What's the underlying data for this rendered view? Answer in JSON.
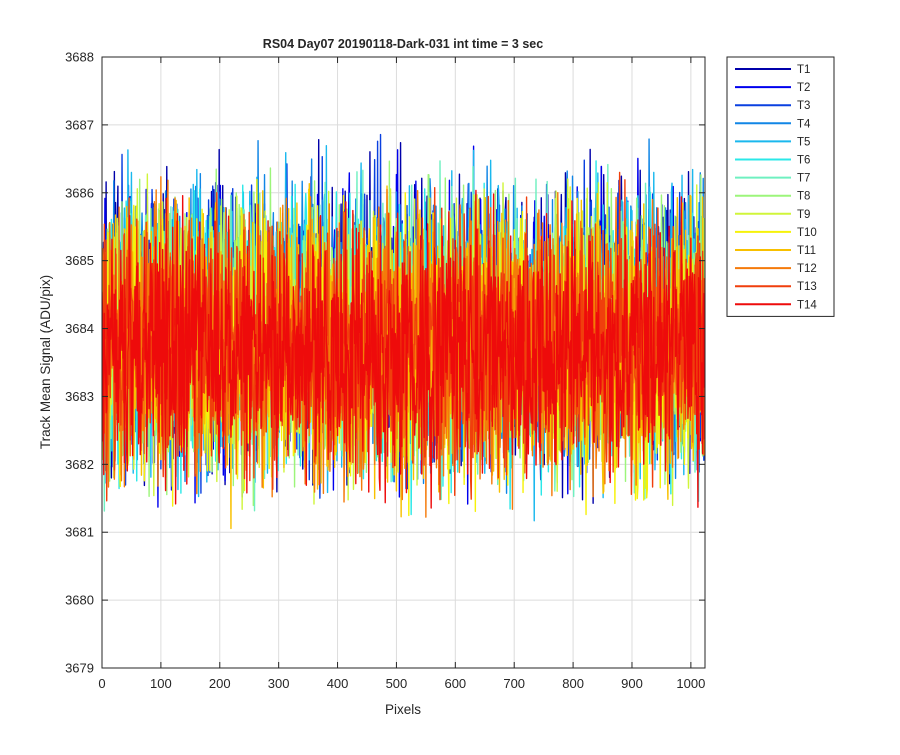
{
  "chart_data": {
    "type": "line",
    "title": "RS04 Day07 20190118-Dark-031 int time = 3 sec",
    "xlabel": "Pixels",
    "ylabel": "Track Mean Signal (ADU/pix)",
    "xlim": [
      0,
      1024
    ],
    "ylim": [
      3679,
      3688
    ],
    "xticks": [
      0,
      100,
      200,
      300,
      400,
      500,
      600,
      700,
      800,
      900,
      1000
    ],
    "yticks": [
      3679,
      3680,
      3681,
      3682,
      3683,
      3684,
      3685,
      3686,
      3687,
      3688
    ],
    "grid": true,
    "legend_position": "outside-top-right",
    "pixel_count": 1024,
    "series": [
      {
        "name": "T1",
        "color": "#0000aa",
        "center": 3684.0,
        "spread": 1.05
      },
      {
        "name": "T2",
        "color": "#0000ee",
        "center": 3684.0,
        "spread": 1.0
      },
      {
        "name": "T3",
        "color": "#0a40e0",
        "center": 3684.0,
        "spread": 1.0
      },
      {
        "name": "T4",
        "color": "#1186e6",
        "center": 3684.0,
        "spread": 0.98
      },
      {
        "name": "T5",
        "color": "#1ab8ee",
        "center": 3684.0,
        "spread": 0.98
      },
      {
        "name": "T6",
        "color": "#2be8e8",
        "center": 3683.9,
        "spread": 0.95
      },
      {
        "name": "T7",
        "color": "#6ff0c0",
        "center": 3683.9,
        "spread": 0.95
      },
      {
        "name": "T8",
        "color": "#9cf57a",
        "center": 3683.9,
        "spread": 0.95
      },
      {
        "name": "T9",
        "color": "#d0f53a",
        "center": 3683.8,
        "spread": 0.95
      },
      {
        "name": "T10",
        "color": "#f6f20a",
        "center": 3683.8,
        "spread": 0.95
      },
      {
        "name": "T11",
        "color": "#f8c000",
        "center": 3683.8,
        "spread": 0.95
      },
      {
        "name": "T12",
        "color": "#f57a0a",
        "center": 3683.7,
        "spread": 0.95
      },
      {
        "name": "T13",
        "color": "#f03f0c",
        "center": 3683.7,
        "spread": 0.92
      },
      {
        "name": "T14",
        "color": "#ee0b0b",
        "center": 3683.7,
        "spread": 0.9
      }
    ]
  }
}
